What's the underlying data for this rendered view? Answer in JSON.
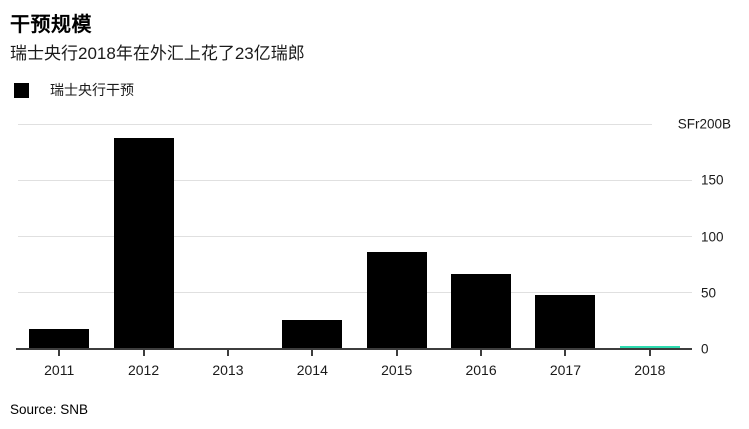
{
  "header": {
    "title": "干预规模",
    "subtitle": "瑞士央行2018年在外汇上花了23亿瑞郎"
  },
  "legend": {
    "items": [
      {
        "label": "瑞士央行干预",
        "swatch_color": "#000000"
      }
    ]
  },
  "source": "Source: SNB",
  "colors": {
    "bar_default": "#000000",
    "bar_highlight": "#2fdcb1",
    "gridline": "#e0e0e0",
    "axis": "#3d3d3d",
    "text": "#1a1a1a",
    "background": "#ffffff"
  },
  "chart_data": {
    "type": "bar",
    "title": "干预规模",
    "subtitle": "瑞士央行2018年在外汇上花了23亿瑞郎",
    "categories": [
      "2011",
      "2012",
      "2013",
      "2014",
      "2015",
      "2016",
      "2017",
      "2018"
    ],
    "series": [
      {
        "name": "瑞士央行干预",
        "values": [
          18,
          188,
          0,
          26,
          86,
          67,
          48,
          2.3
        ],
        "colors": [
          "#000000",
          "#000000",
          "#000000",
          "#000000",
          "#000000",
          "#000000",
          "#000000",
          "#2fdcb1"
        ]
      }
    ],
    "unit": "SFr billions",
    "ylim": [
      0,
      200
    ],
    "yticks": [
      {
        "value": 0,
        "label": "0"
      },
      {
        "value": 50,
        "label": "50"
      },
      {
        "value": 100,
        "label": "100"
      },
      {
        "value": 150,
        "label": "150"
      },
      {
        "value": 200,
        "label": "SFr200B",
        "is_unit_label": true
      }
    ],
    "grid": true,
    "gridlines_right_of_labels": false,
    "legend_position": "top-left",
    "xlabel": "",
    "ylabel": ""
  }
}
